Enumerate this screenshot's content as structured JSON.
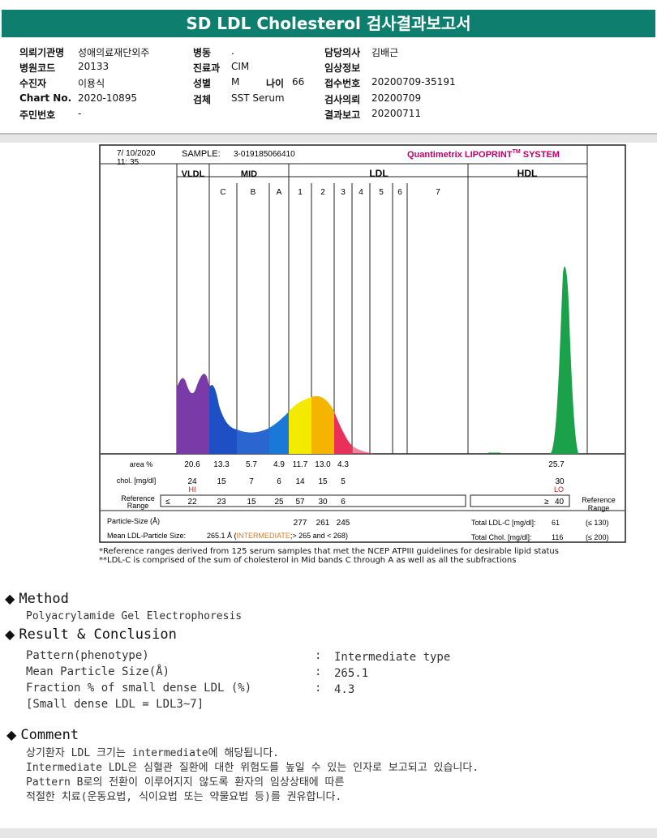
{
  "header": {
    "title": "SD LDL Cholesterol 검사결과보고서"
  },
  "info": {
    "rows": [
      [
        {
          "label": "의뢰기관명",
          "value": "성애의료재단외주"
        },
        {
          "label": "병동",
          "value": "."
        },
        {
          "label": "담당의사",
          "value": "김배근"
        }
      ],
      [
        {
          "label": "병원코드",
          "value": "20133"
        },
        {
          "label": "진료과",
          "value": "CIM"
        },
        {
          "label": "임상정보",
          "value": ""
        }
      ],
      [
        {
          "label": "수진자",
          "value": "이용식"
        },
        {
          "label": "성별",
          "value": "M"
        },
        {
          "label": "접수번호",
          "value": "20200709-35191"
        }
      ],
      [
        {
          "label": "Chart No.",
          "value": "2020-10895"
        },
        {
          "label": "검체",
          "value": "SST Serum"
        },
        {
          "label": "검사의뢰",
          "value": "20200709"
        }
      ],
      [
        {
          "label": "주민번호",
          "value": "-"
        },
        {
          "label": "",
          "value": ""
        },
        {
          "label": "결과보고",
          "value": "20200711"
        }
      ]
    ],
    "age_label": "나이",
    "age_value": "66"
  },
  "report": {
    "date": "7/ 10/2020",
    "time": "11: 35",
    "sample_label": "SAMPLE:",
    "sample_id": "3-019185066410",
    "brand": "Quantimetrix LIPOPRINT",
    "brand_tm": "TM",
    "brand_tail": " SYSTEM",
    "groups": {
      "vldl": "VLDL",
      "mid": "MID",
      "ldl": "LDL",
      "hdl": "HDL"
    },
    "subbands": [
      "C",
      "B",
      "A",
      "1",
      "2",
      "3",
      "4",
      "5",
      "6",
      "7"
    ],
    "area_label": "area %",
    "area": [
      "20.6",
      "13.3",
      "5.7",
      "4.9",
      "11.7",
      "13.0",
      "4.3"
    ],
    "hdl_area": "25.7",
    "chol_label": "chol. [mg/dl]",
    "chol": [
      "24",
      "15",
      "7",
      "6",
      "14",
      "15",
      "5"
    ],
    "hdl_chol": "30",
    "hi_flag": "HI",
    "lo_flag": "LO",
    "ref_label_1": "Reference",
    "ref_label_2": "Range",
    "ref_le": "≤",
    "ref": [
      "22",
      "23",
      "15",
      "25",
      "57",
      "30",
      "6"
    ],
    "hdl_ref_ge": "≥",
    "hdl_ref": "40",
    "ref_right_1": "Reference",
    "ref_right_2": "Range",
    "particle_label": "Particle-Size (Å)",
    "particle": [
      "277",
      "261",
      "245"
    ],
    "mean_label": "Mean LDL-Particle Size:",
    "mean_value": "265.1 Å",
    "mean_class": "INTERMEDIATE",
    "mean_range": ";> 265 and < 268)",
    "total_ldl_label": "Total LDL-C [mg/dl]:",
    "total_ldl": "61",
    "total_ldl_ref": "(≤ 130)",
    "total_chol_label": "Total Chol. [mg/dl]:",
    "total_chol": "116",
    "total_chol_ref": "(≤ 200)"
  },
  "notes": [
    "*Reference ranges derived from 125 serum samples that met the NCEP ATPIII guidelines for desirable lipid status",
    "**LDL-C is comprised of the sum of cholesterol in Mid bands C through A as well as all the subfractions"
  ],
  "method": {
    "title": "Method",
    "text": "Polyacrylamide Gel Electrophoresis"
  },
  "result": {
    "title": "Result & Conclusion",
    "rows": [
      {
        "label": "Pattern(phenotype)",
        "value": "Intermediate type"
      },
      {
        "label": "Mean Particle Size(Å)",
        "value": "265.1"
      },
      {
        "label": "Fraction % of small dense LDL (%)",
        "value": "4.3"
      }
    ],
    "note": "[Small dense LDL = LDL3~7]"
  },
  "comment": {
    "title": "Comment",
    "lines": [
      "상기환자 LDL 크기는 intermediate에 해당됩니다.",
      "Intermediate LDL은 심혈관 질환에 대한 위험도를 높일 수 있는 인자로 보고되고 있습니다.",
      "Pattern B로의 전환이 이루어지지 않도록 환자의 임상상태에 따른",
      "적절한 치료(운동요법, 식이요법 또는 약물요법 등)를 권유합니다."
    ]
  },
  "colors": {
    "header": "#0e7f6e",
    "vldl": "#7a3aa8",
    "mid": "#1f4fc4",
    "ldl1": "#f4ea00",
    "ldl2": "#f5b400",
    "ldl3": "#e8305a",
    "hdl": "#1aa14a",
    "flag": "#d01010",
    "brand": "#c0006a",
    "intermediate": "#e07a10"
  }
}
